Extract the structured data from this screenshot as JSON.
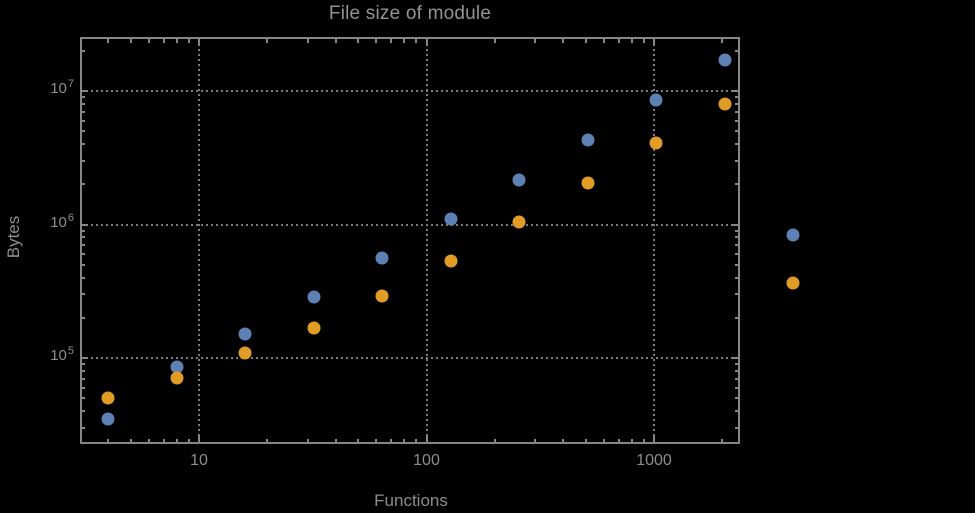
{
  "colors": {
    "background": "#000000",
    "frame": "#868686",
    "grid": "#7d7d7d",
    "tick_labels": "#8d8d8d",
    "axis_labels": "#8d8d8d",
    "title": "#939393",
    "series1": "#5e81b5",
    "series2": "#e09c24"
  },
  "chart_data": {
    "type": "scatter",
    "title": "File size of module",
    "xlabel": "Functions",
    "ylabel": "Bytes",
    "x_scale": "log",
    "y_scale": "log",
    "xlim": [
      3.06,
      2390
    ],
    "ylim": [
      23000,
      25000000
    ],
    "grid": "dotted, at decade lines only",
    "legend": false,
    "x_ticks": [
      {
        "value": 10,
        "label": "10"
      },
      {
        "value": 100,
        "label": "100"
      },
      {
        "value": 1000,
        "label": "1000"
      }
    ],
    "y_ticks": [
      {
        "value": 100000,
        "base": "10",
        "exp": "5"
      },
      {
        "value": 1000000,
        "base": "10",
        "exp": "6"
      },
      {
        "value": 10000000,
        "base": "10",
        "exp": "7"
      }
    ],
    "series": [
      {
        "name": "series-1",
        "color": "#5e81b5",
        "points": [
          [
            4,
            35000
          ],
          [
            8,
            86000
          ],
          [
            16,
            150000
          ],
          [
            32,
            285000
          ],
          [
            64,
            560000
          ],
          [
            128,
            1100000
          ],
          [
            256,
            2150000
          ],
          [
            512,
            4300000
          ],
          [
            1024,
            8600000
          ],
          [
            2048,
            17000000
          ],
          [
            4096,
            835000
          ]
        ]
      },
      {
        "name": "series-2",
        "color": "#e09c24",
        "points": [
          [
            4,
            50000
          ],
          [
            8,
            71000
          ],
          [
            16,
            109000
          ],
          [
            32,
            168000
          ],
          [
            64,
            290000
          ],
          [
            128,
            530000
          ],
          [
            256,
            1040000
          ],
          [
            512,
            2050000
          ],
          [
            1024,
            4100000
          ],
          [
            2048,
            8000000
          ],
          [
            4096,
            365000
          ]
        ]
      }
    ]
  }
}
